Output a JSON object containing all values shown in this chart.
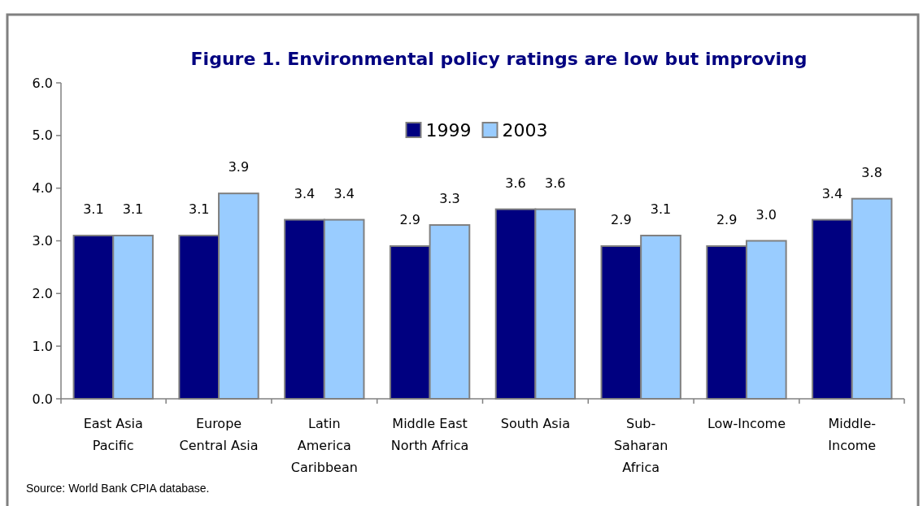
{
  "chart_data": {
    "type": "bar",
    "title": "Figure 1.  Environmental policy ratings are low but improving",
    "categories": [
      "East Asia\nPacific",
      "Europe\nCentral Asia",
      "Latin\nAmerica\nCaribbean",
      "Middle East\nNorth Africa",
      "South Asia",
      "Sub-\nSaharan\nAfrica",
      "Low-Income",
      "Middle-\nIncome"
    ],
    "series": [
      {
        "name": "1999",
        "color": "#000080",
        "values": [
          3.1,
          3.1,
          3.4,
          2.9,
          3.6,
          2.9,
          2.9,
          3.4
        ],
        "value_labels": [
          "3.1",
          "3.1",
          "3.4",
          "2.9",
          "3.6",
          "2.9",
          "2.9",
          "3.4"
        ]
      },
      {
        "name": "2003",
        "color": "#99ccff",
        "values": [
          3.1,
          3.9,
          3.4,
          3.3,
          3.6,
          3.1,
          3.0,
          3.8
        ],
        "value_labels": [
          "3.1",
          "3.9",
          "3.4",
          "3.3",
          "3.6",
          "3.1",
          "3.0",
          "3.8"
        ]
      }
    ],
    "ylim": [
      0,
      6
    ],
    "yticks": [
      {
        "value": 0,
        "label": "0.0"
      },
      {
        "value": 1,
        "label": "1.0"
      },
      {
        "value": 2,
        "label": "2.0"
      },
      {
        "value": 3,
        "label": "3.0"
      },
      {
        "value": 4,
        "label": "4.0"
      },
      {
        "value": 5,
        "label": "5.0"
      },
      {
        "value": 6,
        "label": "6.0"
      }
    ],
    "legend": "top",
    "annotations": [
      "Source: World Bank CPIA database."
    ]
  }
}
